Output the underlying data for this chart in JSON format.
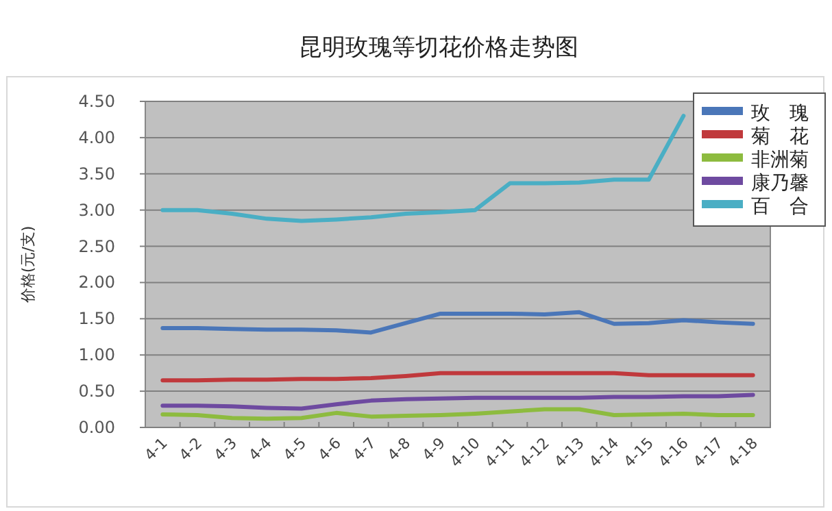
{
  "chart_data": {
    "type": "line",
    "title": "昆明玫瑰等切花价格走势图",
    "ylabel": "价格(元/支)",
    "categories": [
      "4-1",
      "4-2",
      "4-3",
      "4-4",
      "4-5",
      "4-6",
      "4-7",
      "4-8",
      "4-9",
      "4-10",
      "4-11",
      "4-12",
      "4-13",
      "4-14",
      "4-15",
      "4-16",
      "4-17",
      "4-18"
    ],
    "ylim": [
      0,
      4.5
    ],
    "yticks": [
      {
        "value": 0,
        "label": "0.00"
      },
      {
        "value": 0.5,
        "label": "0.50"
      },
      {
        "value": 1,
        "label": "1.00"
      },
      {
        "value": 1.5,
        "label": "1.50"
      },
      {
        "value": 2,
        "label": "2.00"
      },
      {
        "value": 2.5,
        "label": "2.50"
      },
      {
        "value": 3,
        "label": "3.00"
      },
      {
        "value": 3.5,
        "label": "3.50"
      },
      {
        "value": 4,
        "label": "4.00"
      },
      {
        "value": 4.5,
        "label": "4.50"
      }
    ],
    "grid": "y",
    "legend": "top right",
    "marker": "none",
    "line_style": "solid",
    "series": [
      {
        "name": "玫　瑰",
        "color": "#4a76b8",
        "values": [
          1.37,
          1.37,
          1.36,
          1.35,
          1.35,
          1.34,
          1.31,
          1.44,
          1.57,
          1.57,
          1.57,
          1.56,
          1.59,
          1.43,
          1.44,
          1.48,
          1.45,
          1.43
        ]
      },
      {
        "name": "菊　花",
        "color": "#c0393c",
        "values": [
          0.65,
          0.65,
          0.66,
          0.66,
          0.67,
          0.67,
          0.68,
          0.71,
          0.75,
          0.75,
          0.75,
          0.75,
          0.75,
          0.75,
          0.72,
          0.72,
          0.72,
          0.72
        ]
      },
      {
        "name": "非洲菊",
        "color": "#8dbb3f",
        "values": [
          0.18,
          0.17,
          0.13,
          0.12,
          0.13,
          0.2,
          0.15,
          0.16,
          0.17,
          0.19,
          0.22,
          0.25,
          0.25,
          0.17,
          0.18,
          0.19,
          0.17,
          0.17
        ]
      },
      {
        "name": "康乃馨",
        "color": "#6e4aa0",
        "values": [
          0.3,
          0.3,
          0.29,
          0.27,
          0.26,
          0.32,
          0.37,
          0.39,
          0.4,
          0.41,
          0.41,
          0.41,
          0.41,
          0.42,
          0.42,
          0.43,
          0.43,
          0.45
        ]
      },
      {
        "name": "百　合",
        "color": "#4aaec4",
        "values": [
          3.0,
          3.0,
          2.95,
          2.88,
          2.85,
          2.87,
          2.9,
          2.95,
          2.97,
          3.0,
          3.37,
          3.37,
          3.38,
          3.42,
          3.42,
          4.3,
          null,
          null
        ]
      }
    ]
  }
}
